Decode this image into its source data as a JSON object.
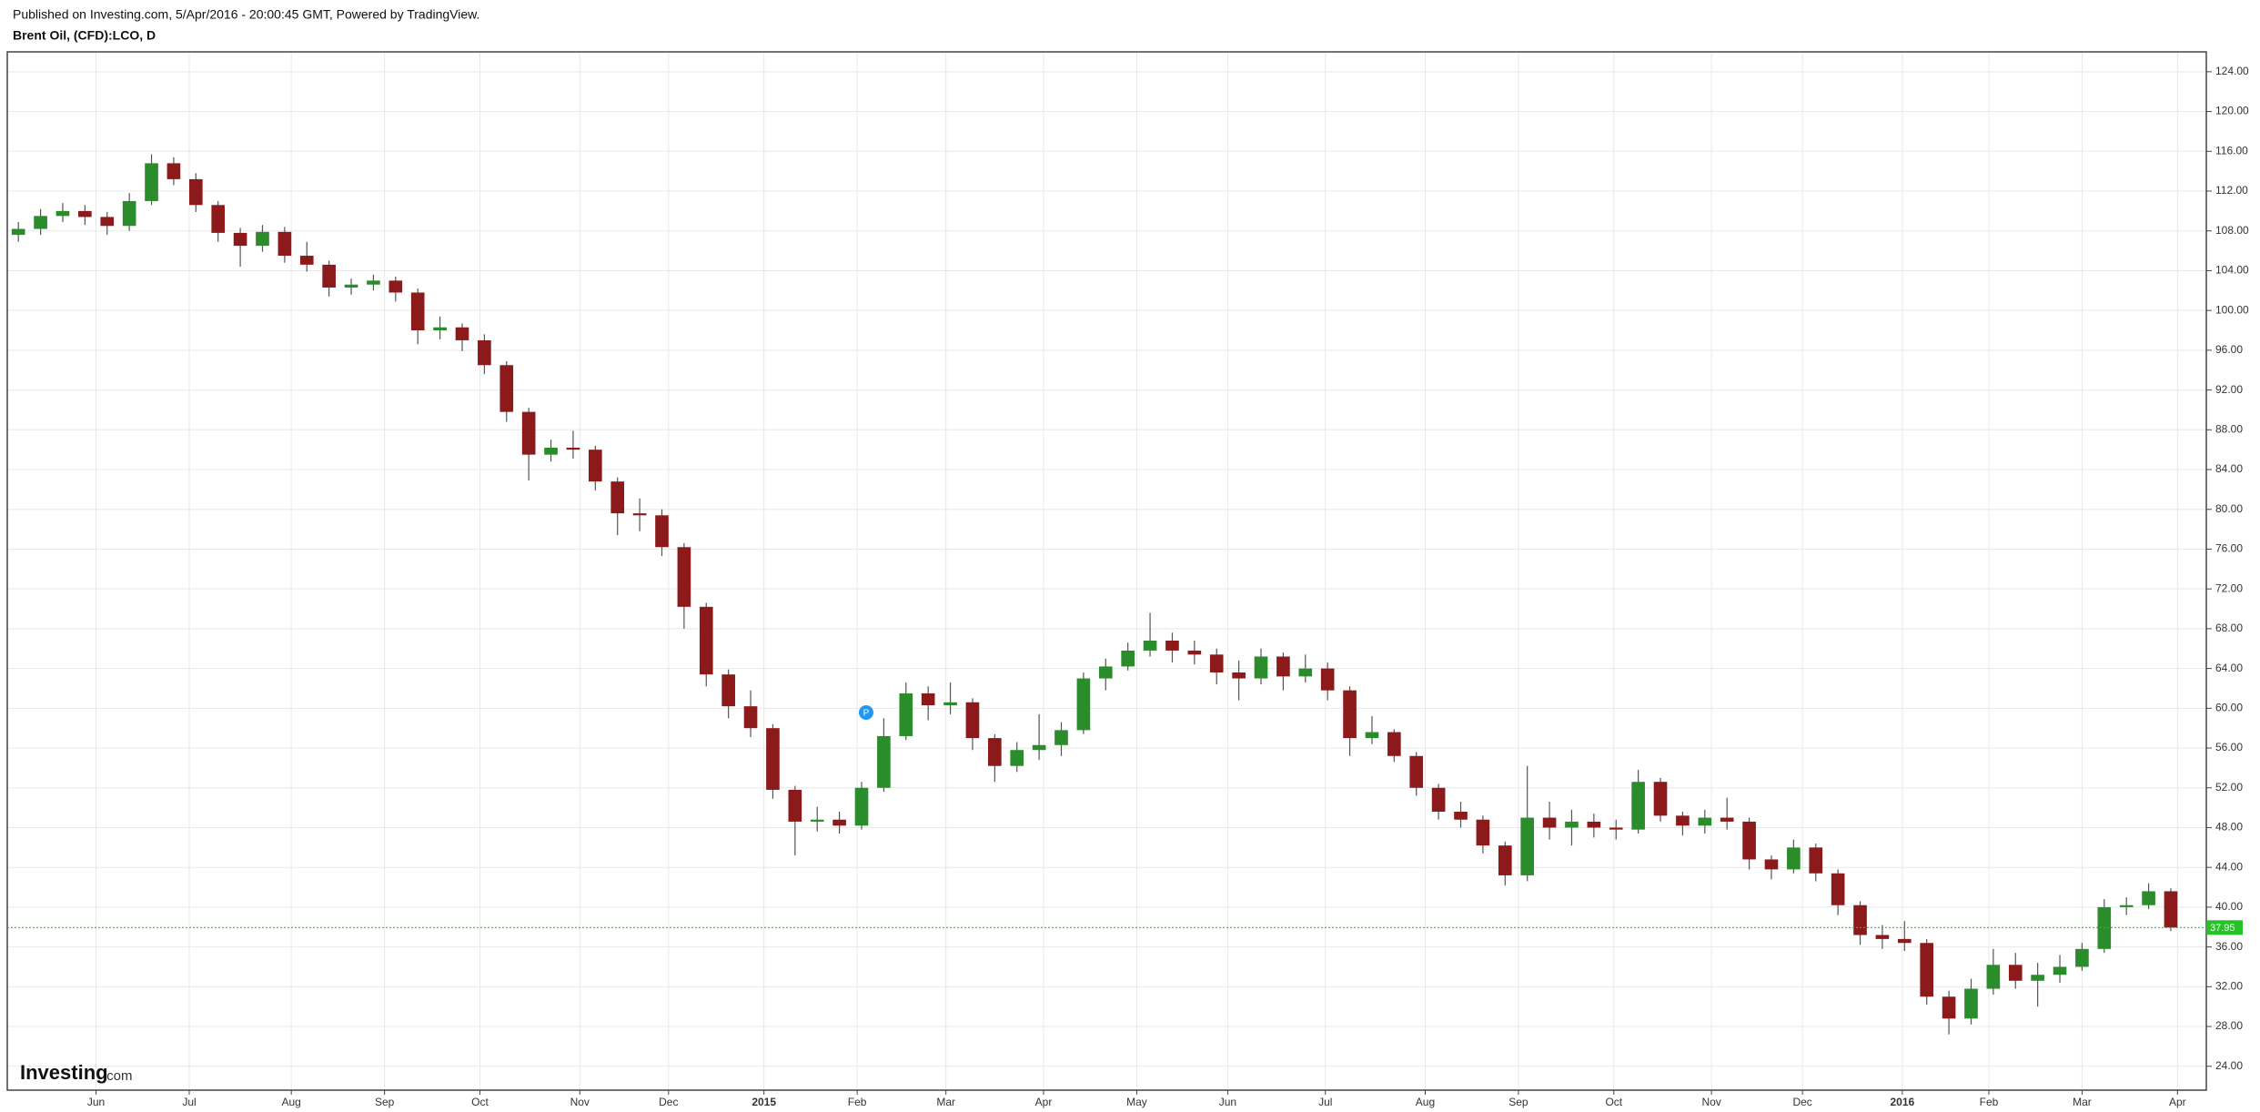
{
  "published": "Published on Investing.com, 5/Apr/2016 - 20:00:45 GMT, Powered by TradingView.",
  "logo_main": "Investing",
  "logo_suffix": ".com",
  "chart_data": {
    "type": "candlestick",
    "title": "Brent Oil, (CFD):LCO, D",
    "up_color": "#2a8c2a",
    "down_color": "#8c1a1a",
    "grid": true,
    "last_price": 37.95,
    "last_price_color": "#22c322",
    "open": [
      107.6,
      108.2,
      109.5,
      110.0,
      109.4,
      108.5,
      111.0,
      114.8,
      113.2,
      110.6,
      107.8,
      106.5,
      107.9,
      105.5,
      104.6,
      102.3,
      102.6,
      103.0,
      101.8,
      98.0,
      98.3,
      97.0,
      94.5,
      89.8,
      85.5,
      86.2,
      86.0,
      82.8,
      79.6,
      79.4,
      76.2,
      70.2,
      63.4,
      60.2,
      58.0,
      51.8,
      48.6,
      48.8,
      48.2,
      52.0,
      57.2,
      61.5,
      60.3,
      60.6,
      57.0,
      54.2,
      55.8,
      56.3,
      57.8,
      63.0,
      64.2,
      65.8,
      66.8,
      65.8,
      65.4,
      63.6,
      63.0,
      65.2,
      63.2,
      64.0,
      61.8,
      57.0,
      57.6,
      55.2,
      52.0,
      49.6,
      48.8,
      46.2,
      43.2,
      49.0,
      48.0,
      48.6,
      48.0,
      47.8,
      52.6,
      49.2,
      48.2,
      49.0,
      48.6,
      44.8,
      43.8,
      46.0,
      43.4,
      40.2,
      37.2,
      36.8,
      36.4,
      31.0,
      28.8,
      31.8,
      34.2,
      32.6,
      33.2,
      34.0,
      35.8,
      40.0,
      40.2,
      41.6
    ],
    "high": [
      108.9,
      110.2,
      110.8,
      110.6,
      109.9,
      111.8,
      115.7,
      115.4,
      113.8,
      111.0,
      108.3,
      108.6,
      108.4,
      106.9,
      105.0,
      103.2,
      103.6,
      103.4,
      102.2,
      99.4,
      98.7,
      97.6,
      94.9,
      90.2,
      87.0,
      87.9,
      86.4,
      83.2,
      81.1,
      80.0,
      76.6,
      70.6,
      63.9,
      61.8,
      58.4,
      52.2,
      50.1,
      49.6,
      52.6,
      59.0,
      62.6,
      62.2,
      62.6,
      61.0,
      57.4,
      56.6,
      59.4,
      58.6,
      63.6,
      65.0,
      66.6,
      69.6,
      67.6,
      66.8,
      66.0,
      64.8,
      66.0,
      65.6,
      65.4,
      64.6,
      62.2,
      59.2,
      57.9,
      55.6,
      52.4,
      50.6,
      49.2,
      46.6,
      54.2,
      50.6,
      49.8,
      49.4,
      48.8,
      53.8,
      53.0,
      49.6,
      49.8,
      51.0,
      49.0,
      45.2,
      46.8,
      46.4,
      43.8,
      40.6,
      38.2,
      38.6,
      36.8,
      31.6,
      32.8,
      35.8,
      35.4,
      34.4,
      35.2,
      36.4,
      40.8,
      41.0,
      42.4,
      41.9
    ],
    "low": [
      106.9,
      107.6,
      108.9,
      108.6,
      107.6,
      108.0,
      110.6,
      112.6,
      109.9,
      106.9,
      104.4,
      105.9,
      104.8,
      103.9,
      101.4,
      101.6,
      102.0,
      100.9,
      96.6,
      97.1,
      95.9,
      93.6,
      88.8,
      82.9,
      84.8,
      85.1,
      81.9,
      77.4,
      77.8,
      75.3,
      68.0,
      62.2,
      59.0,
      57.1,
      50.9,
      45.2,
      47.6,
      47.4,
      47.8,
      51.6,
      56.8,
      58.8,
      59.4,
      55.8,
      52.6,
      53.6,
      54.8,
      55.2,
      57.4,
      61.8,
      63.8,
      65.2,
      64.6,
      64.4,
      62.4,
      60.8,
      62.4,
      61.8,
      62.6,
      60.8,
      55.2,
      56.4,
      54.6,
      51.2,
      48.8,
      48.0,
      45.4,
      42.2,
      42.6,
      46.8,
      46.2,
      47.0,
      46.8,
      47.4,
      48.6,
      47.2,
      47.4,
      47.8,
      43.8,
      42.8,
      43.4,
      42.6,
      39.2,
      36.2,
      35.8,
      35.6,
      30.2,
      27.2,
      28.2,
      31.2,
      31.8,
      30.0,
      32.4,
      33.6,
      35.4,
      39.2,
      39.8,
      37.6
    ],
    "close": [
      108.2,
      109.5,
      110.0,
      109.4,
      108.5,
      111.0,
      114.8,
      113.2,
      110.6,
      107.8,
      106.5,
      107.9,
      105.5,
      104.6,
      102.3,
      102.6,
      103.0,
      101.8,
      98.0,
      98.3,
      97.0,
      94.5,
      89.8,
      85.5,
      86.2,
      86.0,
      82.8,
      79.6,
      79.4,
      76.2,
      70.2,
      63.4,
      60.2,
      58.0,
      51.8,
      48.6,
      48.8,
      48.2,
      52.0,
      57.2,
      61.5,
      60.3,
      60.6,
      57.0,
      54.2,
      55.8,
      56.3,
      57.8,
      63.0,
      64.2,
      65.8,
      66.8,
      65.8,
      65.4,
      63.6,
      63.0,
      65.2,
      63.2,
      64.0,
      61.8,
      57.0,
      57.6,
      55.2,
      52.0,
      49.6,
      48.8,
      46.2,
      43.2,
      49.0,
      48.0,
      48.6,
      48.0,
      47.8,
      52.6,
      49.2,
      48.2,
      49.0,
      48.6,
      44.8,
      43.8,
      46.0,
      43.4,
      40.2,
      37.2,
      36.8,
      36.4,
      31.0,
      28.8,
      31.8,
      34.2,
      32.6,
      33.2,
      34.0,
      35.8,
      40.0,
      40.2,
      41.6,
      37.95
    ],
    "xlim": [
      -0.5,
      98.6
    ],
    "xticks": [
      {
        "value": 3.5,
        "label": "Jun"
      },
      {
        "value": 7.7,
        "label": "Jul"
      },
      {
        "value": 12.3,
        "label": "Aug"
      },
      {
        "value": 16.5,
        "label": "Sep"
      },
      {
        "value": 20.8,
        "label": "Oct"
      },
      {
        "value": 25.3,
        "label": "Nov"
      },
      {
        "value": 29.3,
        "label": "Dec"
      },
      {
        "value": 33.6,
        "label": "2015"
      },
      {
        "value": 37.8,
        "label": "Feb"
      },
      {
        "value": 41.8,
        "label": "Mar"
      },
      {
        "value": 46.2,
        "label": "Apr"
      },
      {
        "value": 50.4,
        "label": "May"
      },
      {
        "value": 54.5,
        "label": "Jun"
      },
      {
        "value": 58.9,
        "label": "Jul"
      },
      {
        "value": 63.4,
        "label": "Aug"
      },
      {
        "value": 67.6,
        "label": "Sep"
      },
      {
        "value": 71.9,
        "label": "Oct"
      },
      {
        "value": 76.3,
        "label": "Nov"
      },
      {
        "value": 80.4,
        "label": "Dec"
      },
      {
        "value": 84.9,
        "label": "2016"
      },
      {
        "value": 88.8,
        "label": "Feb"
      },
      {
        "value": 93.0,
        "label": "Mar"
      },
      {
        "value": 97.3,
        "label": "Apr"
      }
    ],
    "ylim": [
      21.6,
      126.0
    ],
    "yticks": [
      {
        "value": 24,
        "label": "24.00"
      },
      {
        "value": 28,
        "label": "28.00"
      },
      {
        "value": 32,
        "label": "32.00"
      },
      {
        "value": 36,
        "label": "36.00"
      },
      {
        "value": 40,
        "label": "40.00"
      },
      {
        "value": 44,
        "label": "44.00"
      },
      {
        "value": 48,
        "label": "48.00"
      },
      {
        "value": 52,
        "label": "52.00"
      },
      {
        "value": 56,
        "label": "56.00"
      },
      {
        "value": 60,
        "label": "60.00"
      },
      {
        "value": 64,
        "label": "64.00"
      },
      {
        "value": 68,
        "label": "68.00"
      },
      {
        "value": 72,
        "label": "72.00"
      },
      {
        "value": 76,
        "label": "76.00"
      },
      {
        "value": 80,
        "label": "80.00"
      },
      {
        "value": 84,
        "label": "84.00"
      },
      {
        "value": 88,
        "label": "88.00"
      },
      {
        "value": 92,
        "label": "92.00"
      },
      {
        "value": 96,
        "label": "96.00"
      },
      {
        "value": 100,
        "label": "100.00"
      },
      {
        "value": 104,
        "label": "104.00"
      },
      {
        "value": 108,
        "label": "108.00"
      },
      {
        "value": 112,
        "label": "112.00"
      },
      {
        "value": 116,
        "label": "116.00"
      },
      {
        "value": 120,
        "label": "120.00"
      },
      {
        "value": 124,
        "label": "124.00"
      }
    ]
  }
}
